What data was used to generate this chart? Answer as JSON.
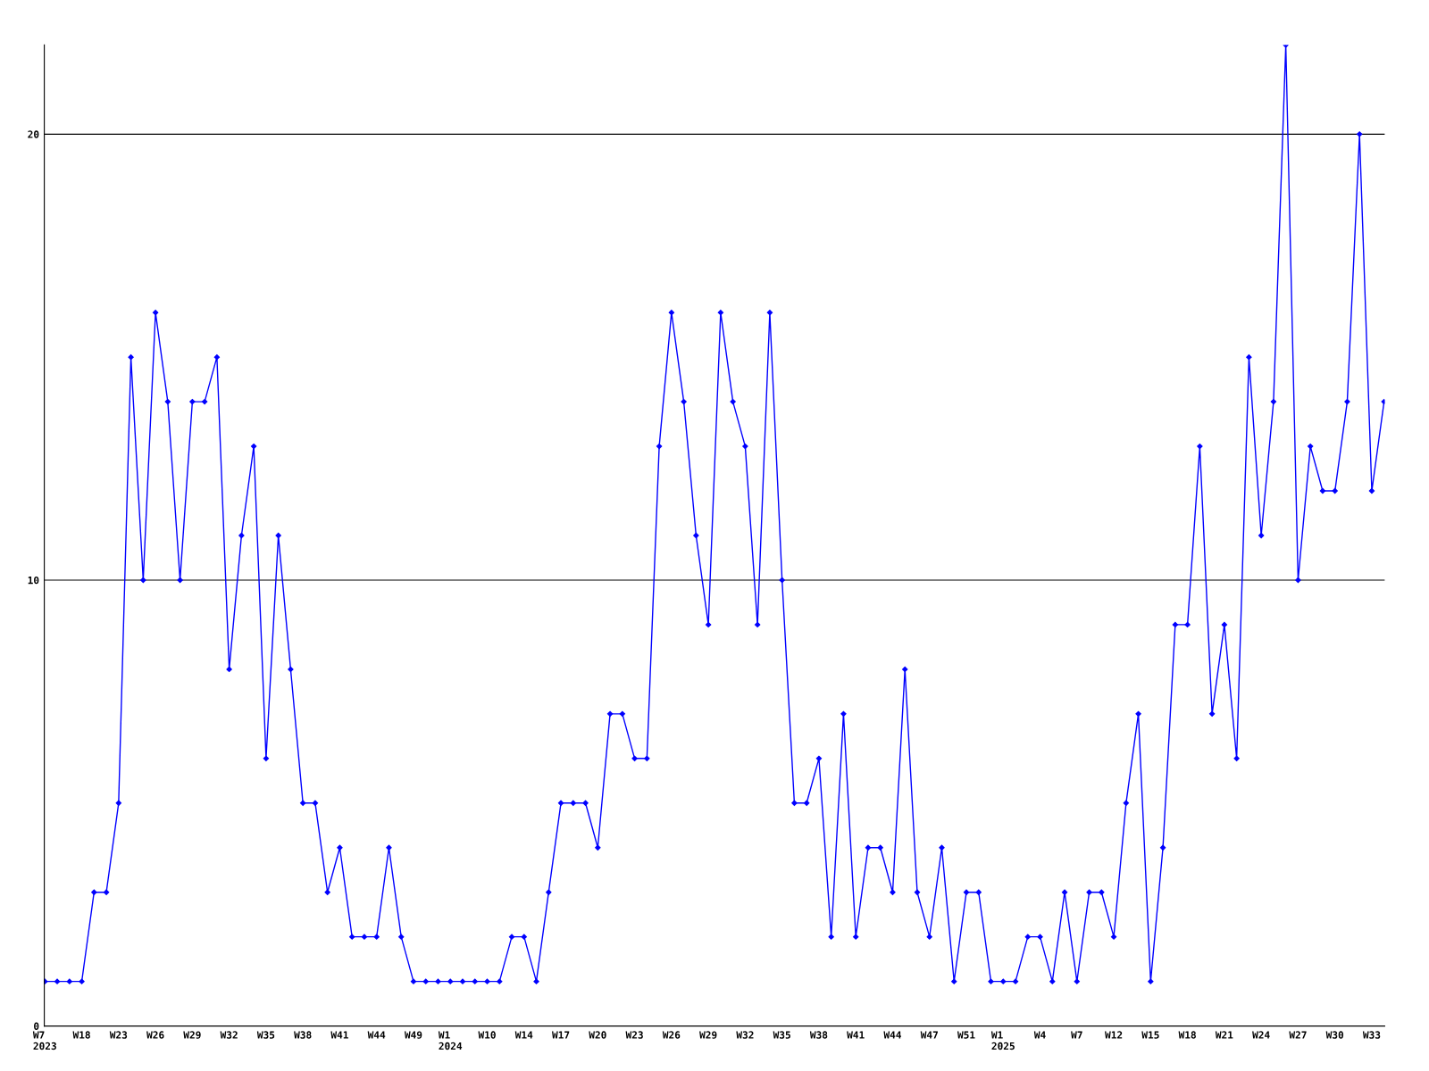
{
  "chart_data": {
    "type": "line",
    "categories": [
      "W7\n2023",
      null,
      null,
      "W18",
      null,
      null,
      "W23",
      null,
      null,
      "W26",
      null,
      null,
      "W29",
      null,
      null,
      "W32",
      null,
      null,
      "W35",
      null,
      null,
      "W38",
      null,
      null,
      "W41",
      null,
      null,
      "W44",
      null,
      null,
      "W49",
      null,
      null,
      "W1\n2024",
      null,
      null,
      "W10",
      null,
      null,
      "W14",
      null,
      null,
      "W17",
      null,
      null,
      "W20",
      null,
      null,
      "W23",
      null,
      null,
      "W26",
      null,
      null,
      "W29",
      null,
      null,
      "W32",
      null,
      null,
      "W35",
      null,
      null,
      "W38",
      null,
      null,
      "W41",
      null,
      null,
      "W44",
      null,
      null,
      "W47",
      null,
      null,
      "W51",
      null,
      null,
      "W1\n2025",
      null,
      null,
      "W4",
      null,
      null,
      "W7",
      null,
      null,
      "W12",
      null,
      null,
      "W15",
      null,
      null,
      "W18",
      null,
      null,
      "W21",
      null,
      null,
      "W24",
      null,
      null,
      "W27",
      null,
      null,
      "W30",
      null,
      null,
      "W33",
      null
    ],
    "series": [
      {
        "color": "#0000ff",
        "values": [
          1,
          1,
          1,
          1,
          3,
          3,
          5,
          15,
          10,
          16,
          14,
          10,
          14,
          14,
          15,
          8,
          11,
          13,
          6,
          11,
          8,
          5,
          5,
          3,
          4,
          2,
          2,
          2,
          4,
          2,
          1,
          1,
          1,
          1,
          1,
          1,
          1,
          1,
          2,
          2,
          1,
          3,
          5,
          5,
          5,
          4,
          7,
          7,
          6,
          6,
          13,
          16,
          14,
          11,
          9,
          16,
          14,
          13,
          9,
          16,
          10,
          5,
          5,
          6,
          2,
          7,
          2,
          4,
          4,
          3,
          8,
          3,
          2,
          4,
          1,
          3,
          3,
          1,
          1,
          1,
          2,
          2,
          1,
          3,
          1,
          3,
          3,
          2,
          5,
          7,
          1,
          4,
          9,
          9,
          13,
          7,
          9,
          6,
          15,
          11,
          14,
          22,
          10,
          13,
          12,
          12,
          14,
          20,
          12,
          14
        ]
      }
    ],
    "ylim": [
      0,
      22
    ],
    "yticks": [
      0,
      10,
      20
    ],
    "grid": "y",
    "marker": "diamond",
    "line_style": "solid",
    "legend": false
  }
}
